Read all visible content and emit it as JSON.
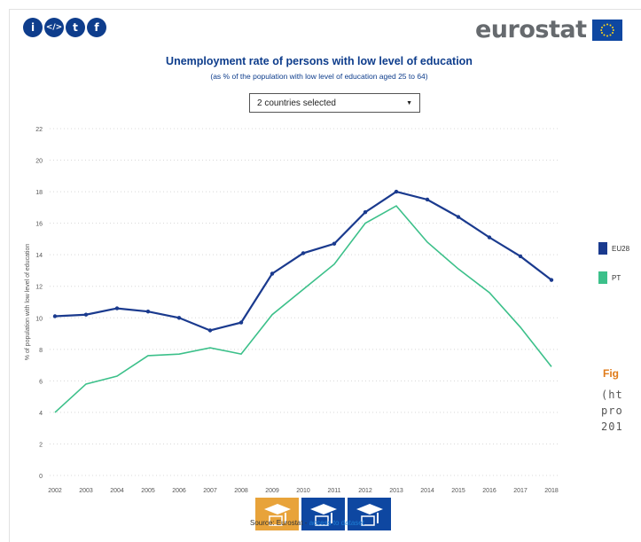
{
  "share_icons": [
    {
      "name": "info-icon",
      "glyph": "i"
    },
    {
      "name": "embed-icon",
      "glyph": "</>"
    },
    {
      "name": "twitter-icon",
      "glyph": "t"
    },
    {
      "name": "facebook-icon",
      "glyph": "f"
    }
  ],
  "logo": {
    "text": "eurostat"
  },
  "selector": {
    "value": "2 countries selected"
  },
  "colors": {
    "eu28": "#1a3a8e",
    "pt": "#3cc08a",
    "brand": "#0e3d8c",
    "accent": "#e8a33a"
  },
  "chart_data": {
    "type": "line",
    "title": "Unemployment rate of persons with low level of education",
    "subtitle": "(as % of the population with low level of education aged 25 to 64)",
    "ylabel": "% of population with low level of education",
    "xlabel": "",
    "x": [
      "2002",
      "2003",
      "2004",
      "2005",
      "2006",
      "2007",
      "2008",
      "2009",
      "2010",
      "2011",
      "2012",
      "2013",
      "2014",
      "2015",
      "2016",
      "2017",
      "2018"
    ],
    "yticks": [
      "0",
      "2",
      "4",
      "6",
      "8",
      "10",
      "12",
      "14",
      "16",
      "18",
      "20",
      "22"
    ],
    "ylim": [
      0,
      22
    ],
    "grid": true,
    "legend_position": "right",
    "series": [
      {
        "name": "EU28",
        "values": [
          10.1,
          10.2,
          10.6,
          10.4,
          10.0,
          9.2,
          9.7,
          12.8,
          14.1,
          14.7,
          16.7,
          18.0,
          17.5,
          16.4,
          15.1,
          13.9,
          12.4
        ]
      },
      {
        "name": "PT",
        "values": [
          4.0,
          5.8,
          6.3,
          7.6,
          7.7,
          8.1,
          7.7,
          10.2,
          11.8,
          13.4,
          16.0,
          17.1,
          14.8,
          13.1,
          11.6,
          9.4,
          6.9
        ]
      }
    ]
  },
  "legend": {
    "items": [
      "EU28",
      "PT"
    ]
  },
  "figure": {
    "label": "Fig",
    "lines": [
      "(ht",
      "pro",
      "201"
    ]
  },
  "tiles": [
    {
      "name": "education-level-low-tile",
      "state": "active"
    },
    {
      "name": "education-level-medium-tile",
      "state": "inactive"
    },
    {
      "name": "education-level-high-tile",
      "state": "inactive"
    }
  ],
  "source": {
    "prefix": "Source: Eurostat - ",
    "link": "access to dataset"
  }
}
